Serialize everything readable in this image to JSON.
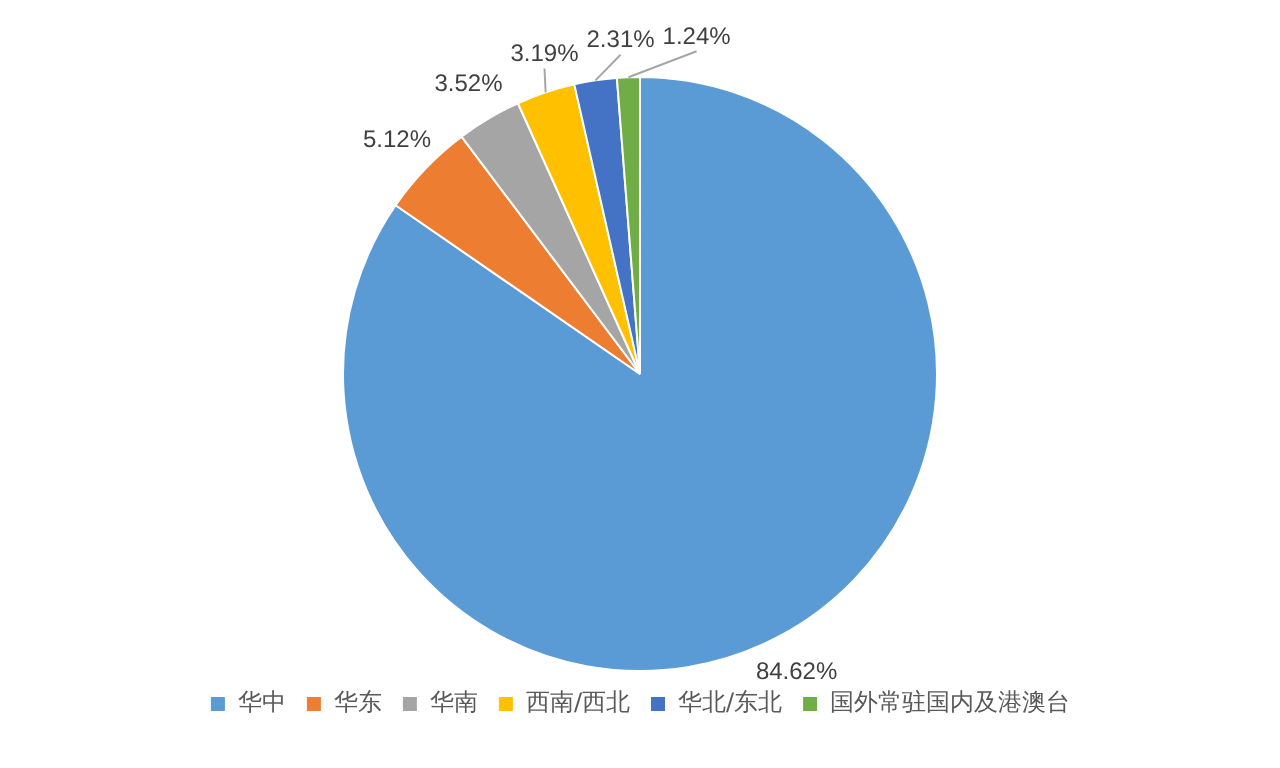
{
  "chart_data": {
    "type": "pie",
    "categories": [
      "华中",
      "华东",
      "华南",
      "西南/西北",
      "华北/东北",
      "国外常驻国内及港澳台"
    ],
    "values": [
      84.62,
      5.12,
      3.52,
      3.19,
      2.31,
      1.24
    ],
    "colors": [
      "#5b9bd5",
      "#ed7d31",
      "#a5a5a5",
      "#ffc000",
      "#4472c4",
      "#70ad47"
    ],
    "value_labels": [
      "84.62%",
      "5.12%",
      "3.52%",
      "3.19%",
      "2.31%",
      "1.24%"
    ],
    "legend": "bottom"
  }
}
